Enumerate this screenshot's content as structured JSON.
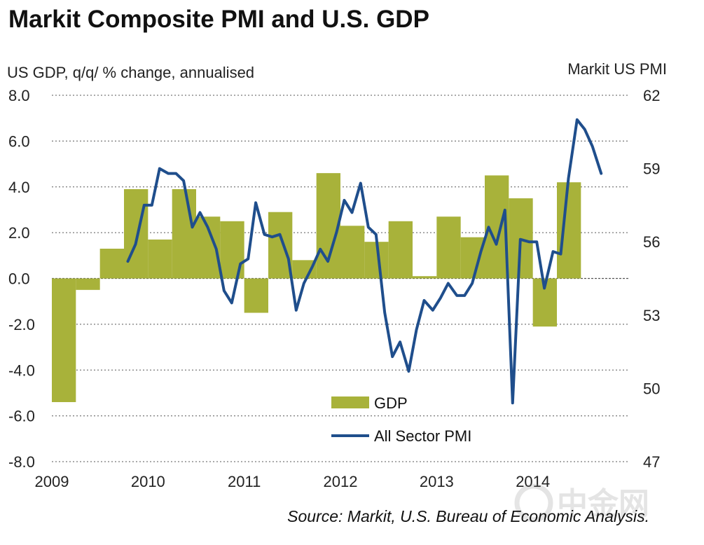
{
  "chart_data": {
    "type": "bar",
    "title": "Markit Composite PMI and U.S. GDP",
    "ylabel_left": "US GDP, q/q/ % change, annualised",
    "ylabel_right": "Markit  US PMI",
    "source": "Source: Markit, U.S. Bureau of Economic Analysis.",
    "ylim_left": [
      -8,
      8
    ],
    "ylim_right": [
      47,
      62
    ],
    "yticks_left": [
      "8.0",
      "6.0",
      "4.0",
      "2.0",
      "0.0",
      "-2.0",
      "-4.0",
      "-6.0",
      "-8.0"
    ],
    "yticks_right": [
      "62",
      "59",
      "56",
      "53",
      "50",
      "47"
    ],
    "xlim": [
      2009,
      2015
    ],
    "xticks": [
      "2009",
      "2010",
      "2011",
      "2012",
      "2013",
      "2014"
    ],
    "grid": "horizontal dotted",
    "legend_placement": "bottom-center",
    "series": [
      {
        "name": "GDP",
        "kind": "bar",
        "axis": "left",
        "color": "#a8b23a",
        "x": [
          "2009Q1",
          "2009Q2",
          "2009Q3",
          "2009Q4",
          "2010Q1",
          "2010Q2",
          "2010Q3",
          "2010Q4",
          "2011Q1",
          "2011Q2",
          "2011Q3",
          "2011Q4",
          "2012Q1",
          "2012Q2",
          "2012Q3",
          "2012Q4",
          "2013Q1",
          "2013Q2",
          "2013Q3",
          "2013Q4",
          "2014Q1",
          "2014Q2"
        ],
        "values": [
          -5.4,
          -0.5,
          1.3,
          3.9,
          1.7,
          3.9,
          2.7,
          2.5,
          -1.5,
          2.9,
          0.8,
          4.6,
          2.3,
          1.6,
          2.5,
          0.1,
          2.7,
          1.8,
          4.5,
          3.5,
          -2.1,
          4.2
        ]
      },
      {
        "name": "All Sector PMI",
        "kind": "line",
        "axis": "right",
        "color": "#1f4e8c",
        "x": [
          2009.79,
          2009.87,
          2009.96,
          2010.04,
          2010.12,
          2010.21,
          2010.29,
          2010.37,
          2010.46,
          2010.54,
          2010.62,
          2010.71,
          2010.79,
          2010.87,
          2010.96,
          2011.04,
          2011.12,
          2011.21,
          2011.29,
          2011.37,
          2011.46,
          2011.54,
          2011.62,
          2011.71,
          2011.79,
          2011.87,
          2011.96,
          2012.04,
          2012.12,
          2012.21,
          2012.29,
          2012.37,
          2012.46,
          2012.54,
          2012.62,
          2012.71,
          2012.79,
          2012.87,
          2012.96,
          2013.04,
          2013.12,
          2013.21,
          2013.29,
          2013.37,
          2013.46,
          2013.54,
          2013.62,
          2013.71,
          2013.79,
          2013.87,
          2013.96,
          2014.04,
          2014.12,
          2014.21,
          2014.29,
          2014.37,
          2014.46,
          2014.54,
          2014.62,
          2014.71
        ],
        "values": [
          55.2,
          55.9,
          57.5,
          57.5,
          59.0,
          58.8,
          58.8,
          58.5,
          56.6,
          57.2,
          56.6,
          55.7,
          54.0,
          53.5,
          55.1,
          55.3,
          57.6,
          56.3,
          56.2,
          56.3,
          55.3,
          53.2,
          54.3,
          55.0,
          55.7,
          55.2,
          56.4,
          57.7,
          57.2,
          58.4,
          56.6,
          56.3,
          53.1,
          51.3,
          51.9,
          50.7,
          52.4,
          53.6,
          53.2,
          53.7,
          54.3,
          53.8,
          53.8,
          54.3,
          55.6,
          56.6,
          55.9,
          57.3,
          49.4,
          56.1,
          56.0,
          56.0,
          54.1,
          55.6,
          55.5,
          58.6,
          61.0,
          60.6,
          59.9,
          58.8
        ]
      }
    ]
  },
  "watermark": "中金网"
}
